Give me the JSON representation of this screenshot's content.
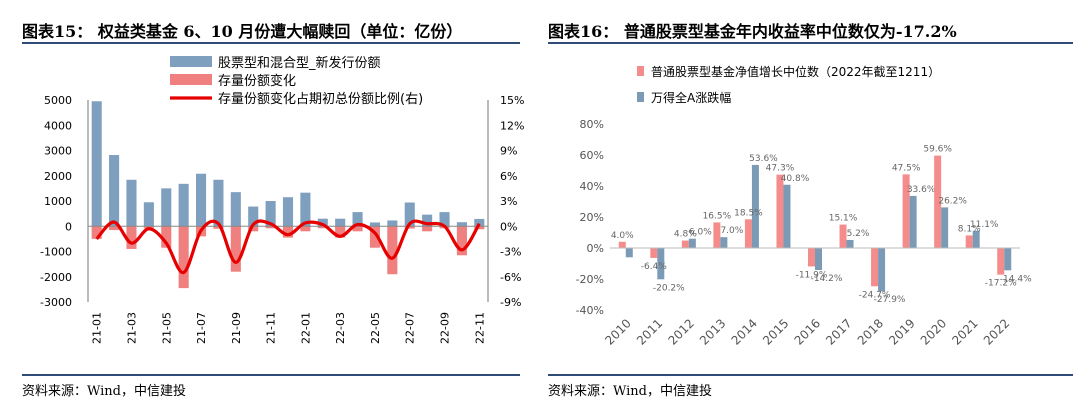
{
  "left": {
    "title": "图表15：  权益类基金 6、10 月份遭大幅赎回（单位：亿份）",
    "source": "资料来源：Wind，中信建投",
    "chart_data": {
      "type": "bar",
      "categories": [
        "21-01",
        "21-02",
        "21-03",
        "21-04",
        "21-05",
        "21-06",
        "21-07",
        "21-08",
        "21-09",
        "21-10",
        "21-11",
        "21-12",
        "22-01",
        "22-02",
        "22-03",
        "22-04",
        "22-05",
        "22-06",
        "22-07",
        "22-08",
        "22-09",
        "22-10",
        "22-11"
      ],
      "tick_labels": [
        "21-01",
        "21-03",
        "21-05",
        "21-07",
        "21-09",
        "21-11",
        "22-01",
        "22-03",
        "22-05",
        "22-07",
        "22-09",
        "22-11"
      ],
      "ylim": [
        -3000,
        5000
      ],
      "y_ticks": [
        "5000",
        "4000",
        "3000",
        "2000",
        "1000",
        "0",
        "-1000",
        "-2000",
        "-3000"
      ],
      "y2lim": [
        -9,
        15
      ],
      "y2_ticks": [
        "15%",
        "12%",
        "9%",
        "6%",
        "3%",
        "0%",
        "-3%",
        "-6%",
        "-9%"
      ],
      "series": [
        {
          "name": "股票型和混合型_新发行份额",
          "kind": "bar",
          "color": "#7f9fbf",
          "values": [
            4950,
            2820,
            1840,
            950,
            1500,
            1680,
            2080,
            1840,
            1350,
            780,
            1000,
            1150,
            1330,
            300,
            300,
            560,
            150,
            230,
            940,
            460,
            560,
            160,
            290
          ]
        },
        {
          "name": "存量份额变化",
          "kind": "bar",
          "color": "#f08080",
          "values": [
            -500,
            -150,
            -900,
            -80,
            -850,
            -2450,
            -400,
            -100,
            -1800,
            -200,
            -80,
            -450,
            -200,
            -80,
            -450,
            -200,
            -850,
            -1900,
            -90,
            -200,
            -80,
            -1150,
            -120
          ]
        },
        {
          "name": "存量份额变化占期初总份额比例(右)",
          "kind": "line",
          "axis": "right",
          "color": "#e60000",
          "values": [
            -1.5,
            0.5,
            -2.0,
            -0.3,
            -2.0,
            -5.5,
            -0.5,
            0.3,
            -4.3,
            0.2,
            0.3,
            -1.0,
            0.4,
            0.2,
            -1.2,
            0.2,
            -0.8,
            -3.8,
            0.3,
            0.3,
            0.0,
            -2.8,
            0.3
          ]
        }
      ]
    }
  },
  "right": {
    "title": "图表16：  普通股票型基金年内收益率中位数仅为-17.2%",
    "source": "资料来源：Wind，中信建投",
    "chart_data": {
      "type": "bar",
      "categories": [
        "2010",
        "2011",
        "2012",
        "2013",
        "2014",
        "2015",
        "2016",
        "2017",
        "2018",
        "2019",
        "2020",
        "2021",
        "2022"
      ],
      "ylim": [
        -40,
        80
      ],
      "y_ticks": [
        "80%",
        "60%",
        "40%",
        "20%",
        "0%",
        "-20%",
        "-40%"
      ],
      "series": [
        {
          "name": "普通股票型基金净值增长中位数（2022年截至1211）",
          "color": "#f48c8c",
          "values": [
            4.0,
            -6.4,
            4.8,
            16.5,
            18.5,
            47.3,
            -11.9,
            15.1,
            -24.7,
            47.5,
            59.6,
            8.1,
            -17.2
          ],
          "labels": [
            "4.0%",
            "-6.4%",
            "4.8%",
            "16.5%",
            "18.5%",
            "47.3%",
            "-11.9%",
            "15.1%",
            "-24.7%",
            "47.5%",
            "59.6%",
            "8.1%",
            "-17.2%"
          ]
        },
        {
          "name": "万得全A涨跌幅",
          "color": "#7a9ab5",
          "values": [
            -6.0,
            -20.2,
            6.0,
            7.0,
            53.6,
            40.8,
            -14.2,
            5.2,
            -27.9,
            33.6,
            26.2,
            11.1,
            -14.4
          ],
          "labels": [
            "",
            "-20.2%",
            "6.0%",
            "7.0%",
            "53.6%",
            "40.8%",
            "-14.2%",
            "5.2%",
            "-27.9%",
            "33.6%",
            "26.2%",
            "11.1%",
            "-14.4%"
          ]
        }
      ]
    }
  }
}
